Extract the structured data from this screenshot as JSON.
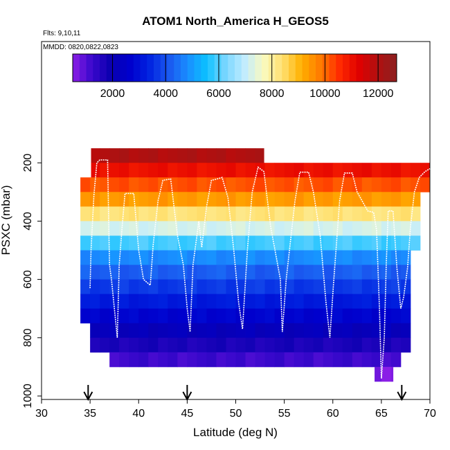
{
  "chart_data": {
    "type": "heatmap",
    "title": "ATOM1 North_America H_GEOS5",
    "annotations": {
      "flights": "Flts: 9,10,11",
      "dates": "MMDD: 0820,0822,0823"
    },
    "xlabel": "Latitude (deg N)",
    "ylabel": "PSXC (mbar)",
    "xlim": [
      30,
      70
    ],
    "ylim": [
      1000,
      0
    ],
    "x_ticks": [
      30,
      35,
      40,
      45,
      50,
      55,
      60,
      65,
      70
    ],
    "y_ticks": [
      200,
      400,
      600,
      800,
      1000
    ],
    "colorbar": {
      "range": [
        500,
        12700
      ],
      "ticks": [
        2000,
        4000,
        6000,
        8000,
        10000,
        12000
      ],
      "colors": [
        "#8b1ee6",
        "#3a08cc",
        "#0a00b0",
        "#0000cd",
        "#0022e0",
        "#1a55ee",
        "#1a8cff",
        "#0cc0ff",
        "#77d6ff",
        "#c0ecff",
        "#fafac0",
        "#ffe070",
        "#ffb000",
        "#ff7a00",
        "#ff2a00",
        "#e00000",
        "#b01010",
        "#8b2020"
      ]
    },
    "bands": [
      {
        "p0": 150,
        "p1": 200,
        "value": 12000,
        "x0": 35.1,
        "x1": 52.9
      },
      {
        "p0": 200,
        "p1": 250,
        "value": 11000,
        "x0": 35.1,
        "x1": 70.0
      },
      {
        "p0": 250,
        "p1": 300,
        "value": 10200,
        "x0": 34.0,
        "x1": 70.0
      },
      {
        "p0": 300,
        "p1": 350,
        "value": 9400,
        "x0": 34.0,
        "x1": 69.0
      },
      {
        "p0": 350,
        "p1": 400,
        "value": 8300,
        "x0": 34.0,
        "x1": 69.0
      },
      {
        "p0": 400,
        "p1": 450,
        "value": 7200,
        "x0": 34.0,
        "x1": 69.0
      },
      {
        "p0": 450,
        "p1": 500,
        "value": 5900,
        "x0": 34.0,
        "x1": 69.0
      },
      {
        "p0": 500,
        "p1": 550,
        "value": 4800,
        "x0": 34.0,
        "x1": 68.0
      },
      {
        "p0": 550,
        "p1": 600,
        "value": 4200,
        "x0": 34.0,
        "x1": 68.0
      },
      {
        "p0": 600,
        "p1": 650,
        "value": 3700,
        "x0": 34.0,
        "x1": 68.0
      },
      {
        "p0": 650,
        "p1": 700,
        "value": 3200,
        "x0": 34.0,
        "x1": 68.0
      },
      {
        "p0": 700,
        "p1": 750,
        "value": 2700,
        "x0": 34.0,
        "x1": 68.0
      },
      {
        "p0": 750,
        "p1": 800,
        "value": 2200,
        "x0": 35.0,
        "x1": 68.0
      },
      {
        "p0": 800,
        "p1": 850,
        "value": 1700,
        "x0": 35.0,
        "x1": 68.0
      },
      {
        "p0": 850,
        "p1": 900,
        "value": 1200,
        "x0": 37.0,
        "x1": 67.0
      },
      {
        "p0": 900,
        "p1": 950,
        "value": 600,
        "x0": 64.3,
        "x1": 66.2
      }
    ],
    "flight_track": [
      [
        35.0,
        630
      ],
      [
        35.1,
        500
      ],
      [
        35.4,
        310
      ],
      [
        35.7,
        200
      ],
      [
        36.0,
        190
      ],
      [
        36.8,
        190
      ],
      [
        37.0,
        550
      ],
      [
        37.2,
        600
      ],
      [
        37.5,
        700
      ],
      [
        37.8,
        800
      ],
      [
        38.0,
        550
      ],
      [
        38.3,
        420
      ],
      [
        38.6,
        305
      ],
      [
        39.5,
        305
      ],
      [
        40.0,
        500
      ],
      [
        40.5,
        600
      ],
      [
        41.2,
        620
      ],
      [
        41.5,
        480
      ],
      [
        42.0,
        330
      ],
      [
        42.5,
        260
      ],
      [
        43.3,
        255
      ],
      [
        44.0,
        450
      ],
      [
        44.6,
        550
      ],
      [
        45.0,
        700
      ],
      [
        45.3,
        780
      ],
      [
        45.6,
        550
      ],
      [
        46.2,
        400
      ],
      [
        46.5,
        490
      ],
      [
        47.0,
        350
      ],
      [
        47.5,
        260
      ],
      [
        48.1,
        255
      ],
      [
        48.6,
        250
      ],
      [
        49.2,
        320
      ],
      [
        49.8,
        500
      ],
      [
        50.3,
        680
      ],
      [
        50.7,
        770
      ],
      [
        51.2,
        500
      ],
      [
        51.7,
        300
      ],
      [
        52.3,
        215
      ],
      [
        52.9,
        230
      ],
      [
        53.6,
        420
      ],
      [
        54.6,
        600
      ],
      [
        54.8,
        780
      ],
      [
        55.2,
        600
      ],
      [
        56.1,
        330
      ],
      [
        56.6,
        232
      ],
      [
        57.5,
        232
      ],
      [
        58.0,
        300
      ],
      [
        58.7,
        450
      ],
      [
        59.3,
        680
      ],
      [
        59.7,
        800
      ],
      [
        60.1,
        600
      ],
      [
        60.7,
        330
      ],
      [
        61.2,
        235
      ],
      [
        62.0,
        235
      ],
      [
        62.5,
        300
      ],
      [
        63.6,
        365
      ],
      [
        64.2,
        370
      ],
      [
        64.5,
        430
      ],
      [
        64.8,
        700
      ],
      [
        65.0,
        940
      ],
      [
        65.3,
        800
      ],
      [
        65.5,
        550
      ],
      [
        65.6,
        460
      ],
      [
        65.7,
        365
      ],
      [
        66.2,
        365
      ],
      [
        66.6,
        560
      ],
      [
        67.0,
        700
      ],
      [
        67.3,
        660
      ],
      [
        67.7,
        560
      ],
      [
        68.0,
        420
      ],
      [
        68.4,
        300
      ],
      [
        68.9,
        250
      ],
      [
        69.5,
        230
      ],
      [
        70.0,
        220
      ]
    ],
    "aircraft_arrows": [
      34.8,
      45.0,
      67.1
    ]
  }
}
